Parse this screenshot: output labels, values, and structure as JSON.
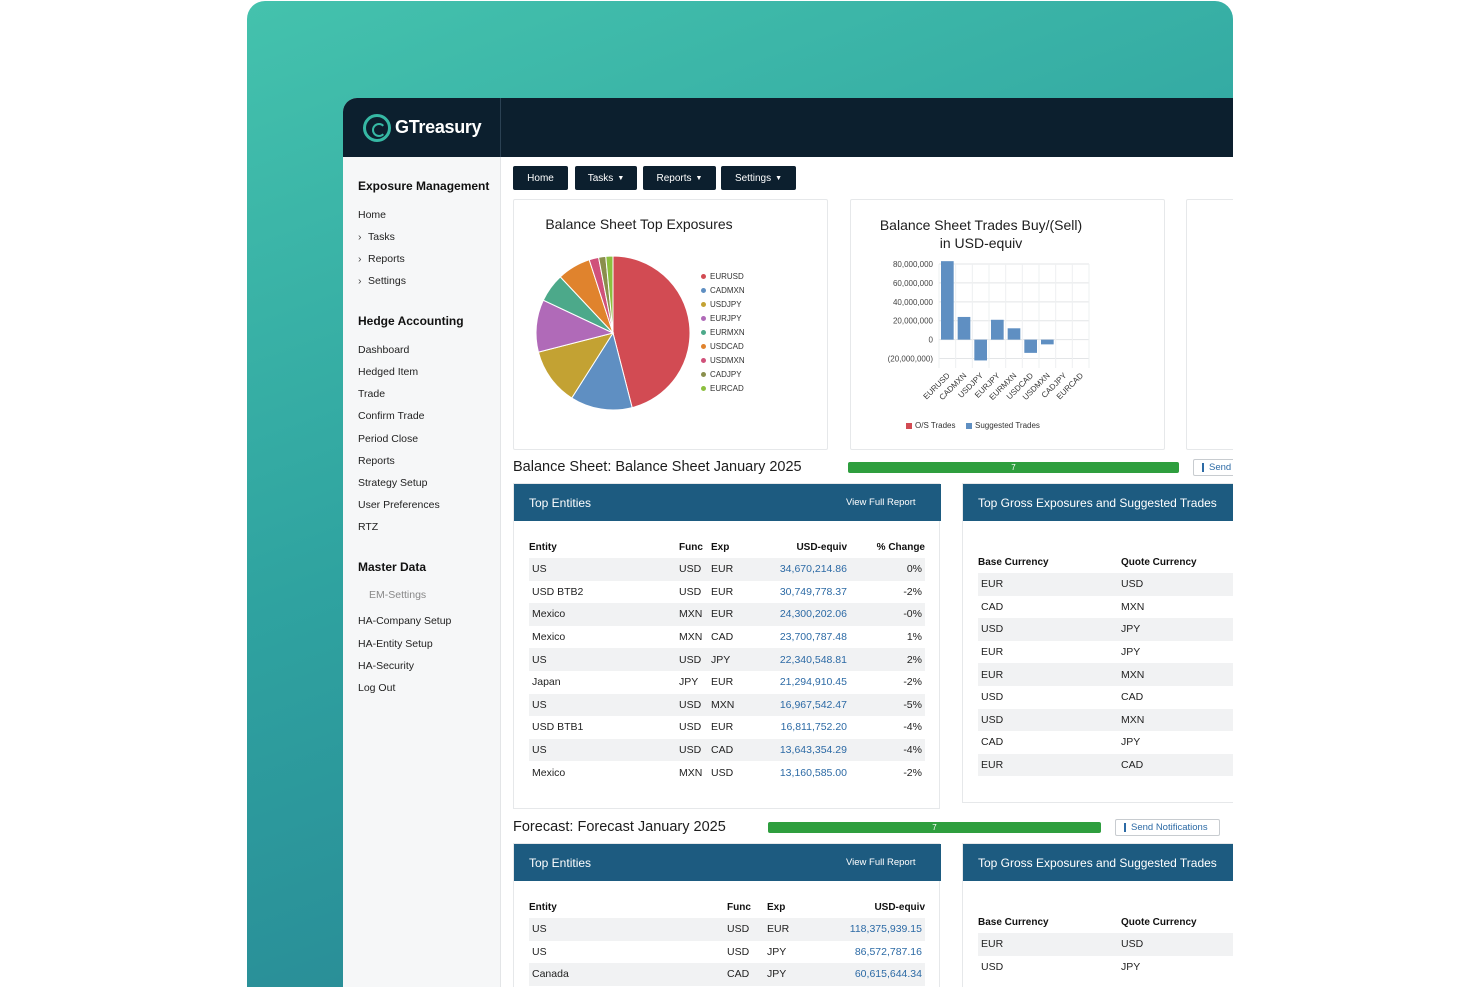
{
  "brand": {
    "name": "GTreasury"
  },
  "sidebar": {
    "sections": [
      {
        "title": "Exposure Management",
        "items": [
          {
            "label": "Home",
            "chev": false
          },
          {
            "label": "Tasks",
            "chev": true
          },
          {
            "label": "Reports",
            "chev": true
          },
          {
            "label": "Settings",
            "chev": true
          }
        ]
      },
      {
        "title": "Hedge Accounting",
        "items": [
          {
            "label": "Dashboard"
          },
          {
            "label": "Hedged Item"
          },
          {
            "label": "Trade"
          },
          {
            "label": "Confirm Trade"
          },
          {
            "label": "Period Close"
          },
          {
            "label": "Reports"
          },
          {
            "label": "Strategy Setup"
          },
          {
            "label": "User Preferences"
          },
          {
            "label": "RTZ"
          }
        ]
      },
      {
        "title": "Master Data",
        "items": [
          {
            "label": "EM-Settings",
            "sub": true
          },
          {
            "label": "HA-Company Setup"
          },
          {
            "label": "HA-Entity Setup"
          },
          {
            "label": "HA-Security"
          },
          {
            "label": "Log Out"
          }
        ]
      }
    ]
  },
  "nav": {
    "buttons": [
      {
        "label": "Home",
        "caret": false
      },
      {
        "label": "Tasks",
        "caret": true
      },
      {
        "label": "Reports",
        "caret": true
      },
      {
        "label": "Settings",
        "caret": true
      }
    ]
  },
  "pie_card": {
    "title": "Balance Sheet Top Exposures"
  },
  "bar_card": {
    "title_line1": "Balance Sheet Trades Buy/(Sell)",
    "title_line2": "in USD-equiv"
  },
  "chart_data": [
    {
      "type": "pie",
      "title": "Balance Sheet Top Exposures",
      "labels": [
        "EURUSD",
        "CADMXN",
        "USDJPY",
        "EURJPY",
        "EURMXN",
        "USDCAD",
        "USDMXN",
        "CADJPY",
        "EURCAD"
      ],
      "values": [
        46,
        13,
        12,
        11,
        6,
        7,
        2,
        1.5,
        1.5
      ],
      "colors": [
        "#d24b53",
        "#5f8fc2",
        "#c3a233",
        "#b06ab8",
        "#4ca98a",
        "#e0832d",
        "#d0517a",
        "#8a8f4c",
        "#8cbf3f"
      ],
      "legend": "right"
    },
    {
      "type": "bar",
      "title": "Balance Sheet Trades Buy/(Sell) in USD-equiv",
      "categories": [
        "EURUSD",
        "CADMXN",
        "USDJPY",
        "EURJPY",
        "EURMXN",
        "USDCAD",
        "USDMXN",
        "CADJPY",
        "EURCAD"
      ],
      "series": [
        {
          "name": "O/S Trades",
          "values": [
            0,
            0,
            0,
            0,
            0,
            0,
            0,
            0,
            0
          ],
          "color": "#d24b53"
        },
        {
          "name": "Suggested Trades",
          "values": [
            83000000,
            24000000,
            -22000000,
            21000000,
            12000000,
            -14000000,
            -5000000,
            0,
            0
          ],
          "color": "#5f8fc2"
        }
      ],
      "ylim": [
        -30000000,
        80000000
      ],
      "yticks": [
        "80,000,000",
        "60,000,000",
        "40,000,000",
        "20,000,000",
        "0",
        "(20,000,000)"
      ],
      "grid": true,
      "legend": "bottom"
    }
  ],
  "balance": {
    "title": "Balance Sheet: Balance Sheet January 2025",
    "progress": {
      "value": "7",
      "fraction": 1.0
    },
    "send_label": "Send",
    "entities": {
      "title": "Top Entities",
      "view_label": "View Full Report",
      "headers": [
        "Entity",
        "Func",
        "Exp",
        "USD-equiv",
        "% Change"
      ],
      "rows": [
        [
          "US",
          "USD",
          "EUR",
          "34,670,214.86",
          "0%"
        ],
        [
          "USD BTB2",
          "USD",
          "EUR",
          "30,749,778.37",
          "-2%"
        ],
        [
          "Mexico",
          "MXN",
          "EUR",
          "24,300,202.06",
          "-0%"
        ],
        [
          "Mexico",
          "MXN",
          "CAD",
          "23,700,787.48",
          "1%"
        ],
        [
          "US",
          "USD",
          "JPY",
          "22,340,548.81",
          "2%"
        ],
        [
          "Japan",
          "JPY",
          "EUR",
          "21,294,910.45",
          "-2%"
        ],
        [
          "US",
          "USD",
          "MXN",
          "16,967,542.47",
          "-5%"
        ],
        [
          "USD BTB1",
          "USD",
          "EUR",
          "16,811,752.20",
          "-4%"
        ],
        [
          "US",
          "USD",
          "CAD",
          "13,643,354.29",
          "-4%"
        ],
        [
          "Mexico",
          "MXN",
          "USD",
          "13,160,585.00",
          "-2%"
        ]
      ]
    },
    "gross": {
      "title": "Top Gross Exposures and Suggested Trades",
      "headers": [
        "Base Currency",
        "Quote Currency"
      ],
      "rows": [
        [
          "EUR",
          "USD"
        ],
        [
          "CAD",
          "MXN"
        ],
        [
          "USD",
          "JPY"
        ],
        [
          "EUR",
          "JPY"
        ],
        [
          "EUR",
          "MXN"
        ],
        [
          "USD",
          "CAD"
        ],
        [
          "USD",
          "MXN"
        ],
        [
          "CAD",
          "JPY"
        ],
        [
          "EUR",
          "CAD"
        ]
      ]
    }
  },
  "forecast": {
    "title": "Forecast: Forecast January 2025",
    "progress": {
      "value": "7",
      "fraction": 1.0
    },
    "send_label": "Send Notifications",
    "entities": {
      "title": "Top Entities",
      "view_label": "View Full Report",
      "headers": [
        "Entity",
        "Func",
        "Exp",
        "USD-equiv"
      ],
      "rows": [
        [
          "US",
          "USD",
          "EUR",
          "118,375,939.15"
        ],
        [
          "US",
          "USD",
          "JPY",
          "86,572,787.16"
        ],
        [
          "Canada",
          "CAD",
          "JPY",
          "60,615,644.34"
        ]
      ]
    },
    "gross": {
      "title": "Top Gross Exposures and Suggested Trades",
      "headers": [
        "Base Currency",
        "Quote Currency"
      ],
      "rows": [
        [
          "EUR",
          "USD"
        ],
        [
          "USD",
          "JPY"
        ]
      ]
    }
  }
}
